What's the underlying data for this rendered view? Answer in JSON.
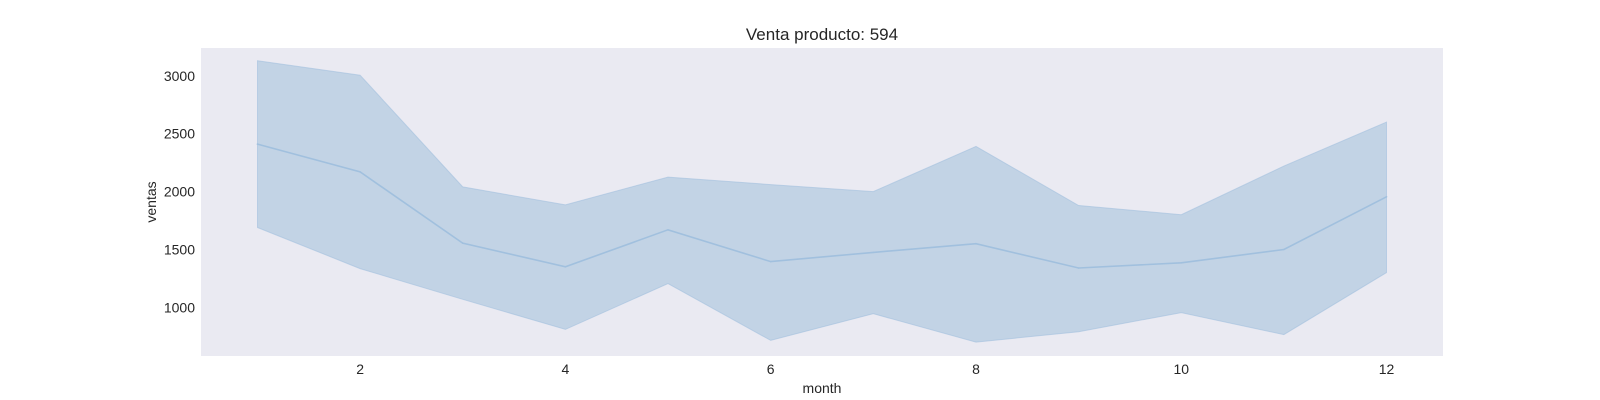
{
  "chart_data": {
    "type": "line",
    "title": "Venta producto: 594",
    "xlabel": "month",
    "ylabel": "ventas",
    "x": [
      1,
      2,
      3,
      4,
      5,
      6,
      7,
      8,
      9,
      10,
      11,
      12
    ],
    "xticks": [
      2,
      4,
      6,
      8,
      10,
      12
    ],
    "yticks": [
      1000,
      1500,
      2000,
      2500,
      3000
    ],
    "xlim": [
      0.45,
      12.55
    ],
    "ylim": [
      580,
      3240
    ],
    "grid": false,
    "series": [
      {
        "values": [
          2410,
          2170,
          1555,
          1350,
          1670,
          1395,
          1475,
          1550,
          1340,
          1385,
          1500,
          1955
        ],
        "ci_upper": [
          3130,
          3005,
          2040,
          1885,
          2125,
          2060,
          2000,
          2390,
          1880,
          1800,
          2220,
          2600
        ],
        "ci_lower": [
          1690,
          1335,
          1070,
          810,
          1205,
          715,
          945,
          700,
          790,
          955,
          765,
          1300
        ]
      }
    ],
    "colors": {
      "line": "#a1c0de",
      "band": "#c2d3e5",
      "plot_background": "#eaeaf2"
    }
  }
}
